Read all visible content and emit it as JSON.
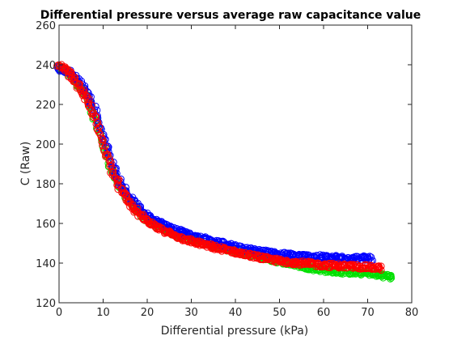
{
  "chart_data": {
    "type": "scatter",
    "title": "Differential pressure versus average raw capacitance value",
    "xlabel": "Differential pressure (kPa)",
    "ylabel": "C (Raw)",
    "xlim": [
      0,
      80
    ],
    "ylim": [
      120,
      260
    ],
    "xticks": [
      "0",
      "10",
      "20",
      "30",
      "40",
      "50",
      "60",
      "70",
      "80"
    ],
    "yticks": [
      "120",
      "140",
      "160",
      "180",
      "200",
      "220",
      "240",
      "260"
    ],
    "grid": false,
    "marker": "circle",
    "series": [
      {
        "color": "#00e000",
        "x": [
          0,
          2,
          4,
          6,
          8,
          10,
          12,
          14,
          16,
          18,
          20,
          23,
          26,
          30,
          35,
          40,
          45,
          50,
          55,
          60,
          65,
          70,
          73,
          75.5
        ],
        "y": [
          238.5,
          236,
          231,
          225,
          214,
          200,
          187,
          178,
          171,
          166,
          162,
          158,
          155,
          152,
          149,
          146,
          143.5,
          141,
          138.5,
          136.5,
          135.5,
          135,
          134,
          133
        ]
      },
      {
        "color": "#0000ff",
        "x": [
          0,
          2,
          4,
          6,
          8,
          10,
          12,
          14,
          16,
          18,
          20,
          23,
          26,
          30,
          35,
          40,
          45,
          50,
          55,
          60,
          65,
          70,
          71
        ],
        "y": [
          238,
          236.5,
          233,
          227,
          218,
          204,
          190,
          180,
          173,
          168,
          164,
          160,
          157,
          154,
          151,
          148,
          146,
          144.5,
          143.5,
          143,
          142.5,
          142.5,
          142
        ]
      },
      {
        "color": "#ff0000",
        "x": [
          0,
          2,
          4,
          6,
          8,
          10,
          12,
          14,
          16,
          18,
          20,
          23,
          26,
          30,
          35,
          40,
          45,
          50,
          55,
          60,
          65,
          70,
          73
        ],
        "y": [
          239.5,
          236.5,
          231,
          224,
          214,
          200,
          187,
          177,
          170,
          165,
          161,
          157,
          154,
          151,
          148,
          145.5,
          143,
          141,
          140,
          139,
          138.5,
          138,
          137.5
        ]
      }
    ]
  }
}
